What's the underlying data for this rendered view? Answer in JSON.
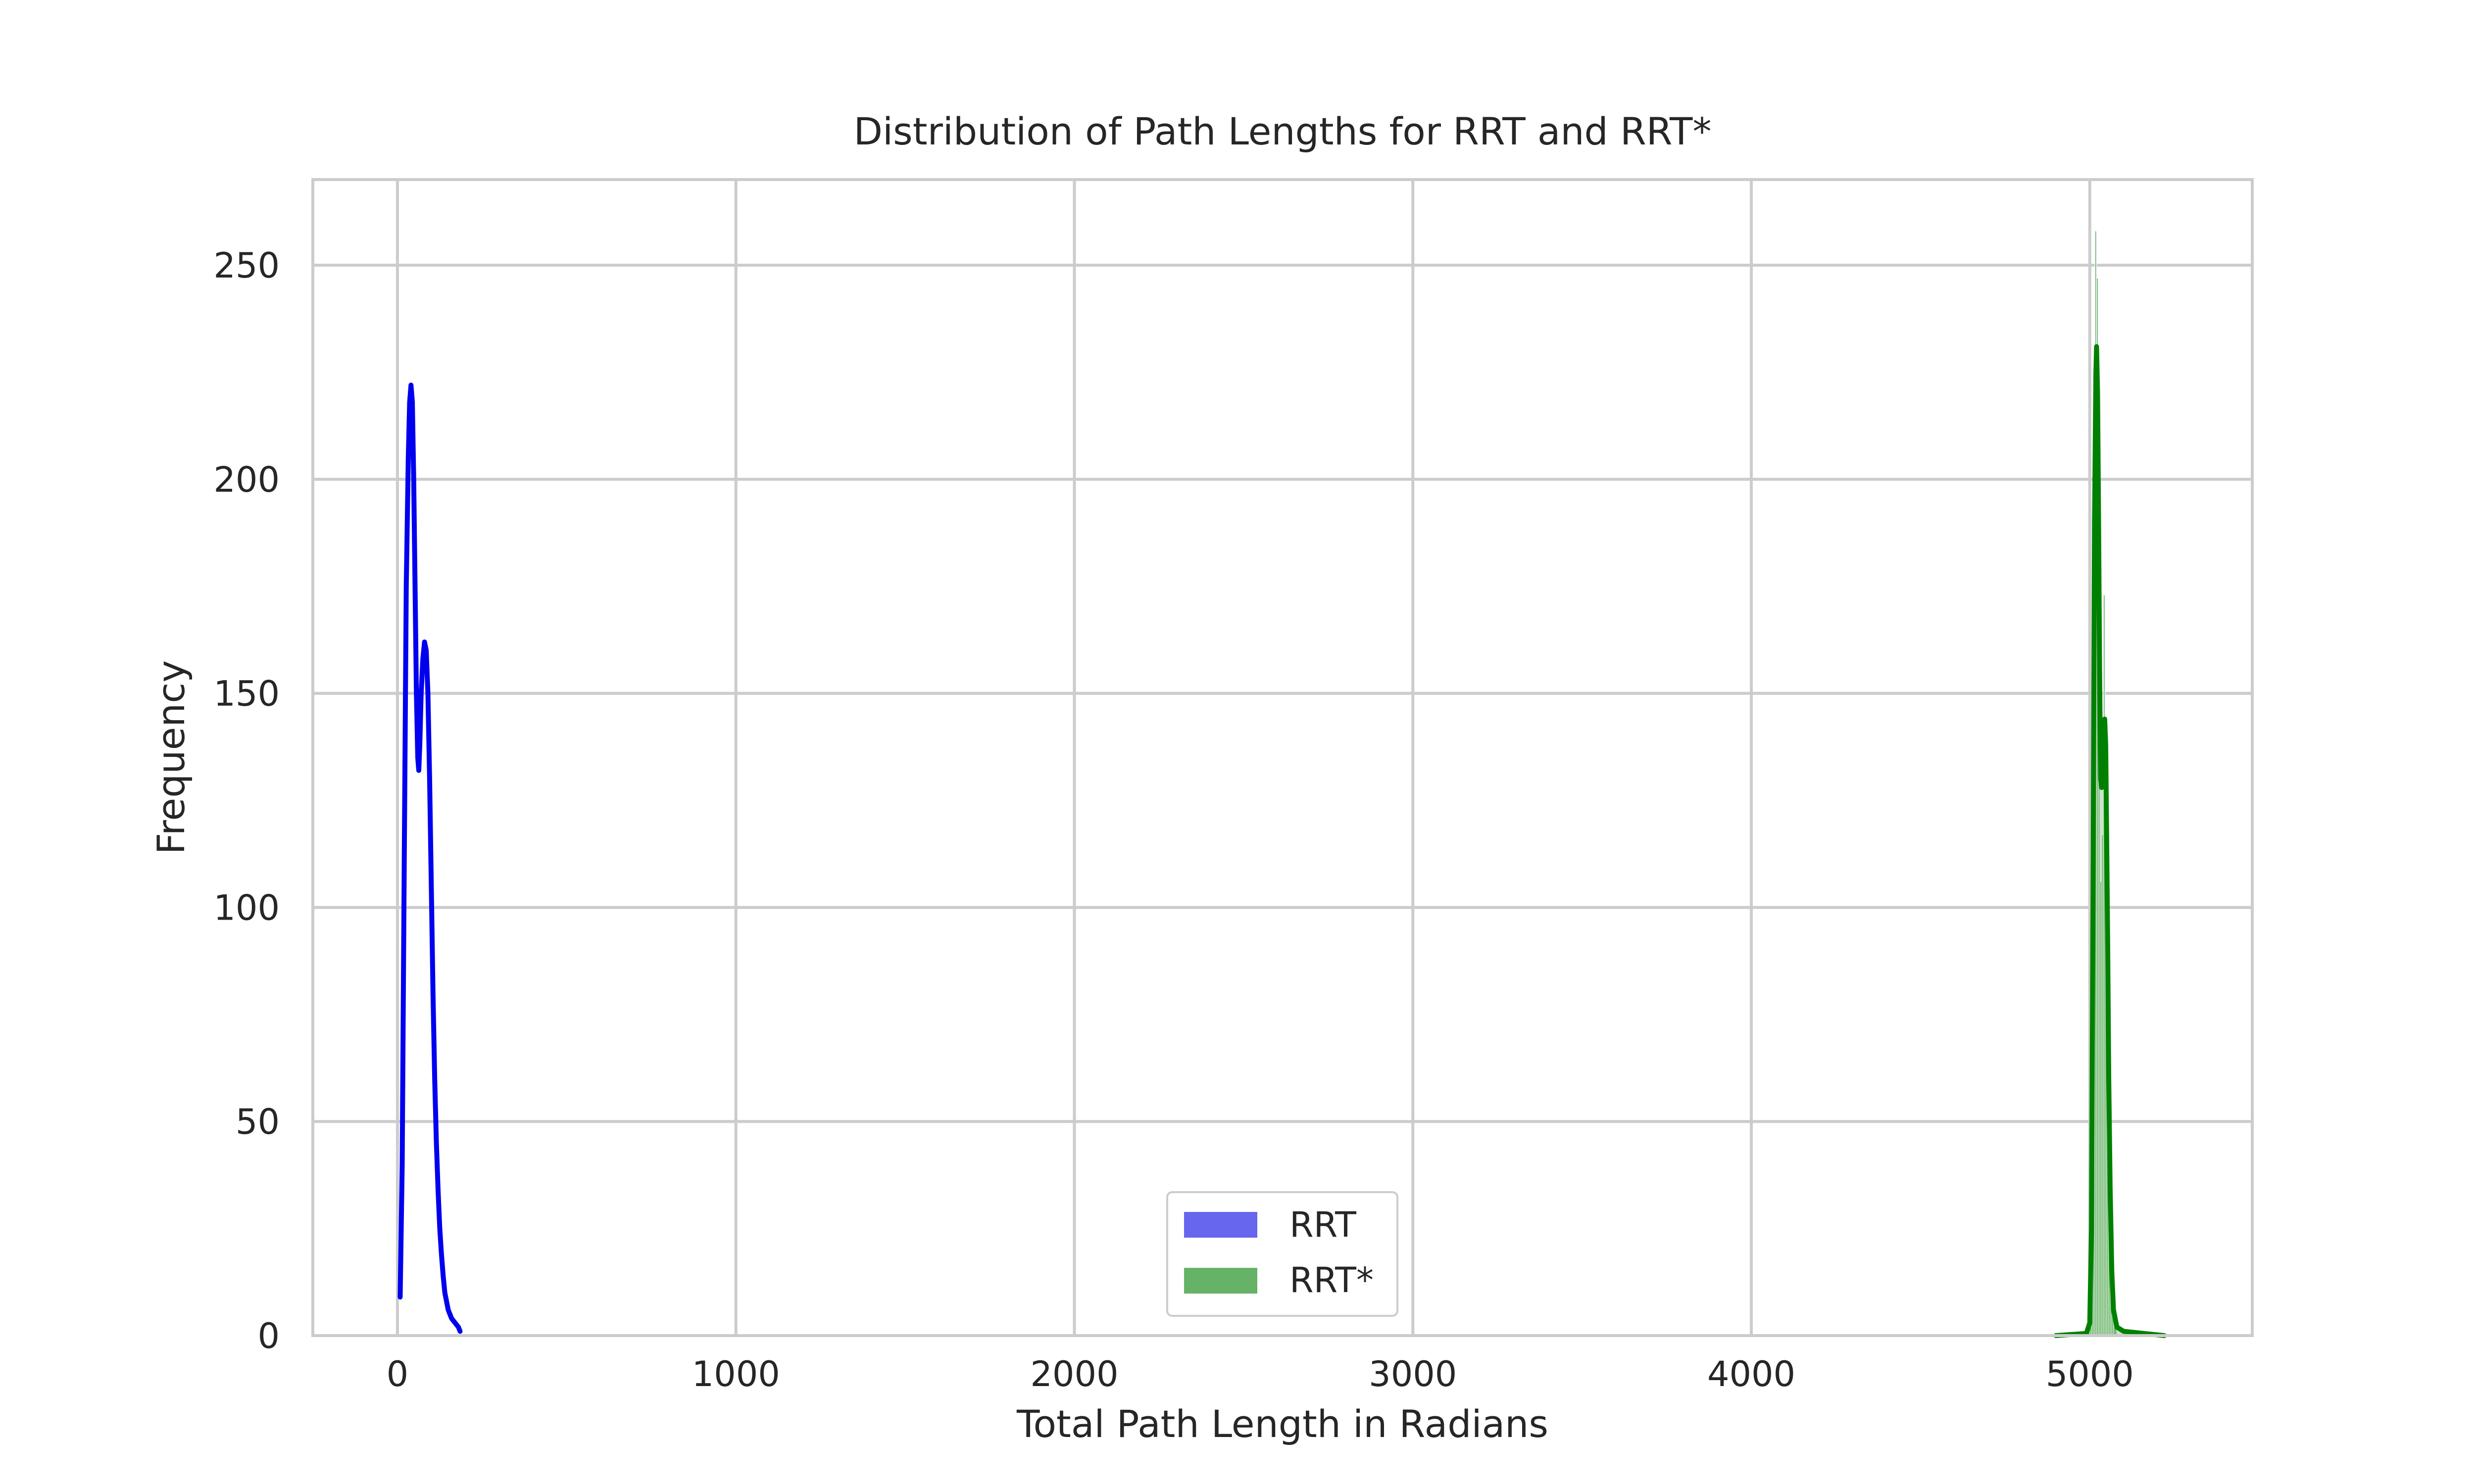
{
  "chart_data": {
    "type": "histogram",
    "title": "Distribution of Path Lengths for RRT and RRT*",
    "xlabel": "Total Path Length in Radians",
    "ylabel": "Frequency",
    "xlim": [
      -250,
      5480
    ],
    "ylim": [
      0,
      270
    ],
    "x_ticks": [
      0,
      1000,
      2000,
      3000,
      4000,
      5000
    ],
    "y_ticks": [
      0,
      50,
      100,
      150,
      200,
      250
    ],
    "grid": true,
    "legend_position": "lower center",
    "series": [
      {
        "name": "RRT",
        "color": "#0000ee",
        "fill_color": "#6666ee",
        "kde": [
          [
            8,
            9
          ],
          [
            14,
            40
          ],
          [
            20,
            110
          ],
          [
            26,
            175
          ],
          [
            32,
            205
          ],
          [
            36,
            218
          ],
          [
            40,
            222
          ],
          [
            44,
            218
          ],
          [
            48,
            200
          ],
          [
            52,
            175
          ],
          [
            56,
            150
          ],
          [
            60,
            135
          ],
          [
            63,
            132
          ],
          [
            66,
            138
          ],
          [
            70,
            150
          ],
          [
            75,
            158
          ],
          [
            80,
            162
          ],
          [
            85,
            160
          ],
          [
            90,
            150
          ],
          [
            95,
            130
          ],
          [
            100,
            105
          ],
          [
            105,
            80
          ],
          [
            110,
            60
          ],
          [
            115,
            45
          ],
          [
            120,
            34
          ],
          [
            125,
            25
          ],
          [
            130,
            19
          ],
          [
            135,
            14
          ],
          [
            140,
            10
          ],
          [
            150,
            6
          ],
          [
            160,
            4
          ],
          [
            170,
            3
          ],
          [
            180,
            2
          ],
          [
            185,
            1
          ]
        ]
      },
      {
        "name": "RRT*",
        "color": "#008000",
        "fill_color": "#66b266",
        "histogram": [
          [
            4990,
            5000,
            1
          ],
          [
            5000,
            5005,
            2
          ],
          [
            5005,
            5010,
            30
          ],
          [
            5010,
            5015,
            150
          ],
          [
            5015,
            5020,
            258
          ],
          [
            5020,
            5025,
            247
          ],
          [
            5025,
            5030,
            165
          ],
          [
            5030,
            5035,
            106
          ],
          [
            5035,
            5040,
            117
          ],
          [
            5040,
            5045,
            173
          ],
          [
            5045,
            5050,
            135
          ],
          [
            5050,
            5055,
            90
          ],
          [
            5055,
            5060,
            40
          ],
          [
            5060,
            5065,
            15
          ],
          [
            5065,
            5070,
            6
          ],
          [
            5070,
            5080,
            2
          ]
        ],
        "kde": [
          [
            4900,
            0
          ],
          [
            4990,
            0.5
          ],
          [
            5000,
            3
          ],
          [
            5005,
            25
          ],
          [
            5010,
            110
          ],
          [
            5014,
            190
          ],
          [
            5018,
            225
          ],
          [
            5020,
            231
          ],
          [
            5023,
            220
          ],
          [
            5026,
            190
          ],
          [
            5029,
            155
          ],
          [
            5032,
            130
          ],
          [
            5035,
            128
          ],
          [
            5038,
            135
          ],
          [
            5041,
            143
          ],
          [
            5044,
            144
          ],
          [
            5047,
            138
          ],
          [
            5050,
            115
          ],
          [
            5053,
            90
          ],
          [
            5056,
            60
          ],
          [
            5060,
            35
          ],
          [
            5065,
            15
          ],
          [
            5070,
            6
          ],
          [
            5080,
            2
          ],
          [
            5100,
            1
          ],
          [
            5220,
            0
          ]
        ]
      }
    ]
  }
}
